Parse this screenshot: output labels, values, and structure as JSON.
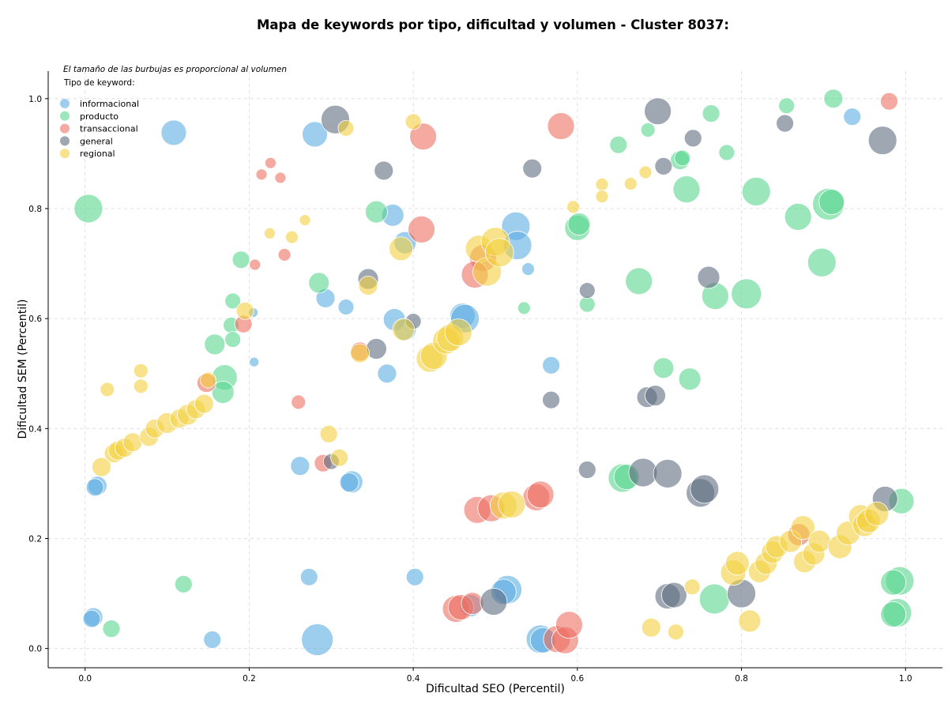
{
  "chart_data": {
    "type": "scatter",
    "title": "Mapa de keywords por tipo, dificultad y volumen - Cluster 8037:",
    "note": "El tamaño de las burbujas es proporcional al volumen",
    "legend_title": "Tipo de keyword:",
    "legend_position": "top-left",
    "xlabel": "Dificultad SEO (Percentil)",
    "ylabel": "Dificultad SEM (Percentil)",
    "xlim": [
      -0.045,
      1.045
    ],
    "ylim": [
      -0.035,
      1.05
    ],
    "xticks": [
      "0.0",
      "0.2",
      "0.4",
      "0.6",
      "0.8",
      "1.0"
    ],
    "yticks": [
      "0.0",
      "0.2",
      "0.4",
      "0.6",
      "0.8",
      "1.0"
    ],
    "grid": true,
    "series": [
      {
        "name": "informacional",
        "color": "#5DADE2",
        "points": [
          [
            0.108,
            0.938,
            16
          ],
          [
            0.28,
            0.935,
            16
          ],
          [
            0.375,
            0.788,
            14
          ],
          [
            0.39,
            0.738,
            14
          ],
          [
            0.525,
            0.768,
            18
          ],
          [
            0.527,
            0.733,
            18
          ],
          [
            0.293,
            0.637,
            12
          ],
          [
            0.318,
            0.621,
            10
          ],
          [
            0.46,
            0.605,
            16
          ],
          [
            0.463,
            0.6,
            18
          ],
          [
            0.377,
            0.598,
            14
          ],
          [
            0.39,
            0.58,
            14
          ],
          [
            0.54,
            0.69,
            8
          ],
          [
            0.205,
            0.611,
            6
          ],
          [
            0.206,
            0.521,
            6
          ],
          [
            0.368,
            0.5,
            12
          ],
          [
            0.568,
            0.515,
            11
          ],
          [
            0.262,
            0.332,
            12
          ],
          [
            0.325,
            0.303,
            14
          ],
          [
            0.322,
            0.302,
            12
          ],
          [
            0.015,
            0.296,
            12
          ],
          [
            0.012,
            0.293,
            11
          ],
          [
            0.273,
            0.13,
            11
          ],
          [
            0.402,
            0.13,
            11
          ],
          [
            0.01,
            0.057,
            12
          ],
          [
            0.008,
            0.054,
            11
          ],
          [
            0.155,
            0.016,
            11
          ],
          [
            0.283,
            0.016,
            20
          ],
          [
            0.515,
            0.107,
            18
          ],
          [
            0.51,
            0.103,
            16
          ],
          [
            0.47,
            0.078,
            14
          ],
          [
            0.555,
            0.017,
            18
          ],
          [
            0.558,
            0.015,
            16
          ],
          [
            0.935,
            0.967,
            11
          ]
        ]
      },
      {
        "name": "producto",
        "color": "#58D68D",
        "points": [
          [
            0.004,
            0.8,
            18
          ],
          [
            0.912,
            1.0,
            12
          ],
          [
            0.855,
            0.987,
            10
          ],
          [
            0.763,
            0.973,
            11
          ],
          [
            0.686,
            0.943,
            9
          ],
          [
            0.65,
            0.916,
            11
          ],
          [
            0.725,
            0.888,
            12
          ],
          [
            0.728,
            0.892,
            10
          ],
          [
            0.782,
            0.902,
            10
          ],
          [
            0.733,
            0.835,
            17
          ],
          [
            0.818,
            0.831,
            18
          ],
          [
            0.869,
            0.785,
            17
          ],
          [
            0.906,
            0.808,
            20
          ],
          [
            0.91,
            0.812,
            16
          ],
          [
            0.6,
            0.765,
            16
          ],
          [
            0.602,
            0.772,
            14
          ],
          [
            0.898,
            0.702,
            18
          ],
          [
            0.675,
            0.668,
            17
          ],
          [
            0.768,
            0.641,
            17
          ],
          [
            0.806,
            0.645,
            19
          ],
          [
            0.612,
            0.626,
            10
          ],
          [
            0.355,
            0.794,
            14
          ],
          [
            0.19,
            0.707,
            11
          ],
          [
            0.285,
            0.665,
            13
          ],
          [
            0.18,
            0.632,
            10
          ],
          [
            0.178,
            0.588,
            10
          ],
          [
            0.18,
            0.562,
            10
          ],
          [
            0.158,
            0.553,
            13
          ],
          [
            0.17,
            0.493,
            16
          ],
          [
            0.168,
            0.466,
            14
          ],
          [
            0.535,
            0.619,
            8
          ],
          [
            0.705,
            0.51,
            13
          ],
          [
            0.737,
            0.49,
            14
          ],
          [
            0.655,
            0.31,
            18
          ],
          [
            0.66,
            0.312,
            16
          ],
          [
            0.767,
            0.09,
            19
          ],
          [
            0.995,
            0.268,
            16
          ],
          [
            0.993,
            0.123,
            18
          ],
          [
            0.985,
            0.12,
            16
          ],
          [
            0.99,
            0.065,
            18
          ],
          [
            0.985,
            0.062,
            16
          ],
          [
            0.12,
            0.117,
            11
          ],
          [
            0.032,
            0.036,
            11
          ]
        ]
      },
      {
        "name": "transaccional",
        "color": "#EC7063",
        "points": [
          [
            0.98,
            0.995,
            11
          ],
          [
            0.58,
            0.95,
            17
          ],
          [
            0.412,
            0.931,
            17
          ],
          [
            0.226,
            0.883,
            7
          ],
          [
            0.215,
            0.862,
            7
          ],
          [
            0.238,
            0.856,
            7
          ],
          [
            0.41,
            0.762,
            17
          ],
          [
            0.243,
            0.716,
            8
          ],
          [
            0.207,
            0.698,
            7
          ],
          [
            0.485,
            0.71,
            17
          ],
          [
            0.475,
            0.68,
            17
          ],
          [
            0.193,
            0.59,
            11
          ],
          [
            0.148,
            0.483,
            12
          ],
          [
            0.26,
            0.448,
            9
          ],
          [
            0.335,
            0.54,
            12
          ],
          [
            0.29,
            0.337,
            11
          ],
          [
            0.478,
            0.252,
            17
          ],
          [
            0.495,
            0.255,
            17
          ],
          [
            0.55,
            0.275,
            17
          ],
          [
            0.555,
            0.28,
            17
          ],
          [
            0.452,
            0.072,
            17
          ],
          [
            0.458,
            0.075,
            16
          ],
          [
            0.472,
            0.082,
            14
          ],
          [
            0.575,
            0.017,
            17
          ],
          [
            0.585,
            0.015,
            17
          ],
          [
            0.59,
            0.043,
            17
          ],
          [
            0.87,
            0.207,
            14
          ]
        ]
      },
      {
        "name": "general",
        "color": "#5D6D7E",
        "points": [
          [
            0.305,
            0.962,
            18
          ],
          [
            0.698,
            0.977,
            17
          ],
          [
            0.853,
            0.955,
            11
          ],
          [
            0.972,
            0.924,
            18
          ],
          [
            0.741,
            0.928,
            11
          ],
          [
            0.364,
            0.869,
            12
          ],
          [
            0.545,
            0.873,
            12
          ],
          [
            0.705,
            0.877,
            11
          ],
          [
            0.345,
            0.672,
            13
          ],
          [
            0.76,
            0.675,
            14
          ],
          [
            0.612,
            0.651,
            10
          ],
          [
            0.355,
            0.545,
            13
          ],
          [
            0.4,
            0.595,
            10
          ],
          [
            0.568,
            0.452,
            11
          ],
          [
            0.685,
            0.457,
            13
          ],
          [
            0.695,
            0.46,
            13
          ],
          [
            0.612,
            0.325,
            11
          ],
          [
            0.68,
            0.32,
            18
          ],
          [
            0.71,
            0.318,
            18
          ],
          [
            0.75,
            0.283,
            18
          ],
          [
            0.755,
            0.29,
            18
          ],
          [
            0.3,
            0.34,
            10
          ],
          [
            0.498,
            0.085,
            17
          ],
          [
            0.71,
            0.095,
            16
          ],
          [
            0.718,
            0.097,
            16
          ],
          [
            0.8,
            0.1,
            18
          ],
          [
            0.975,
            0.272,
            16
          ]
        ]
      },
      {
        "name": "regional",
        "color": "#F4D03F",
        "points": [
          [
            0.02,
            0.33,
            12
          ],
          [
            0.027,
            0.471,
            9
          ],
          [
            0.035,
            0.355,
            12
          ],
          [
            0.04,
            0.36,
            12
          ],
          [
            0.048,
            0.365,
            12
          ],
          [
            0.058,
            0.375,
            12
          ],
          [
            0.068,
            0.505,
            9
          ],
          [
            0.068,
            0.477,
            9
          ],
          [
            0.078,
            0.385,
            12
          ],
          [
            0.085,
            0.4,
            12
          ],
          [
            0.1,
            0.41,
            13
          ],
          [
            0.115,
            0.418,
            12
          ],
          [
            0.125,
            0.425,
            13
          ],
          [
            0.135,
            0.435,
            12
          ],
          [
            0.145,
            0.445,
            12
          ],
          [
            0.15,
            0.488,
            10
          ],
          [
            0.195,
            0.614,
            11
          ],
          [
            0.225,
            0.755,
            7
          ],
          [
            0.252,
            0.748,
            8
          ],
          [
            0.268,
            0.779,
            7
          ],
          [
            0.297,
            0.39,
            11
          ],
          [
            0.31,
            0.347,
            11
          ],
          [
            0.318,
            0.946,
            10
          ],
          [
            0.335,
            0.537,
            12
          ],
          [
            0.345,
            0.66,
            12
          ],
          [
            0.385,
            0.727,
            15
          ],
          [
            0.388,
            0.58,
            14
          ],
          [
            0.4,
            0.958,
            10
          ],
          [
            0.42,
            0.527,
            17
          ],
          [
            0.425,
            0.532,
            17
          ],
          [
            0.44,
            0.56,
            17
          ],
          [
            0.445,
            0.565,
            17
          ],
          [
            0.455,
            0.575,
            17
          ],
          [
            0.48,
            0.727,
            17
          ],
          [
            0.49,
            0.685,
            18
          ],
          [
            0.5,
            0.74,
            18
          ],
          [
            0.505,
            0.72,
            18
          ],
          [
            0.51,
            0.26,
            17
          ],
          [
            0.52,
            0.262,
            17
          ],
          [
            0.595,
            0.803,
            8
          ],
          [
            0.63,
            0.844,
            8
          ],
          [
            0.63,
            0.822,
            8
          ],
          [
            0.665,
            0.845,
            8
          ],
          [
            0.683,
            0.866,
            8
          ],
          [
            0.69,
            0.038,
            12
          ],
          [
            0.72,
            0.03,
            10
          ],
          [
            0.74,
            0.112,
            10
          ],
          [
            0.79,
            0.138,
            16
          ],
          [
            0.795,
            0.155,
            15
          ],
          [
            0.81,
            0.05,
            14
          ],
          [
            0.822,
            0.14,
            14
          ],
          [
            0.83,
            0.155,
            14
          ],
          [
            0.838,
            0.175,
            14
          ],
          [
            0.843,
            0.185,
            14
          ],
          [
            0.86,
            0.195,
            14
          ],
          [
            0.875,
            0.22,
            15
          ],
          [
            0.877,
            0.158,
            14
          ],
          [
            0.888,
            0.172,
            14
          ],
          [
            0.895,
            0.195,
            14
          ],
          [
            0.92,
            0.185,
            15
          ],
          [
            0.93,
            0.21,
            15
          ],
          [
            0.945,
            0.24,
            15
          ],
          [
            0.95,
            0.225,
            15
          ],
          [
            0.955,
            0.232,
            15
          ],
          [
            0.965,
            0.245,
            15
          ]
        ]
      }
    ]
  }
}
